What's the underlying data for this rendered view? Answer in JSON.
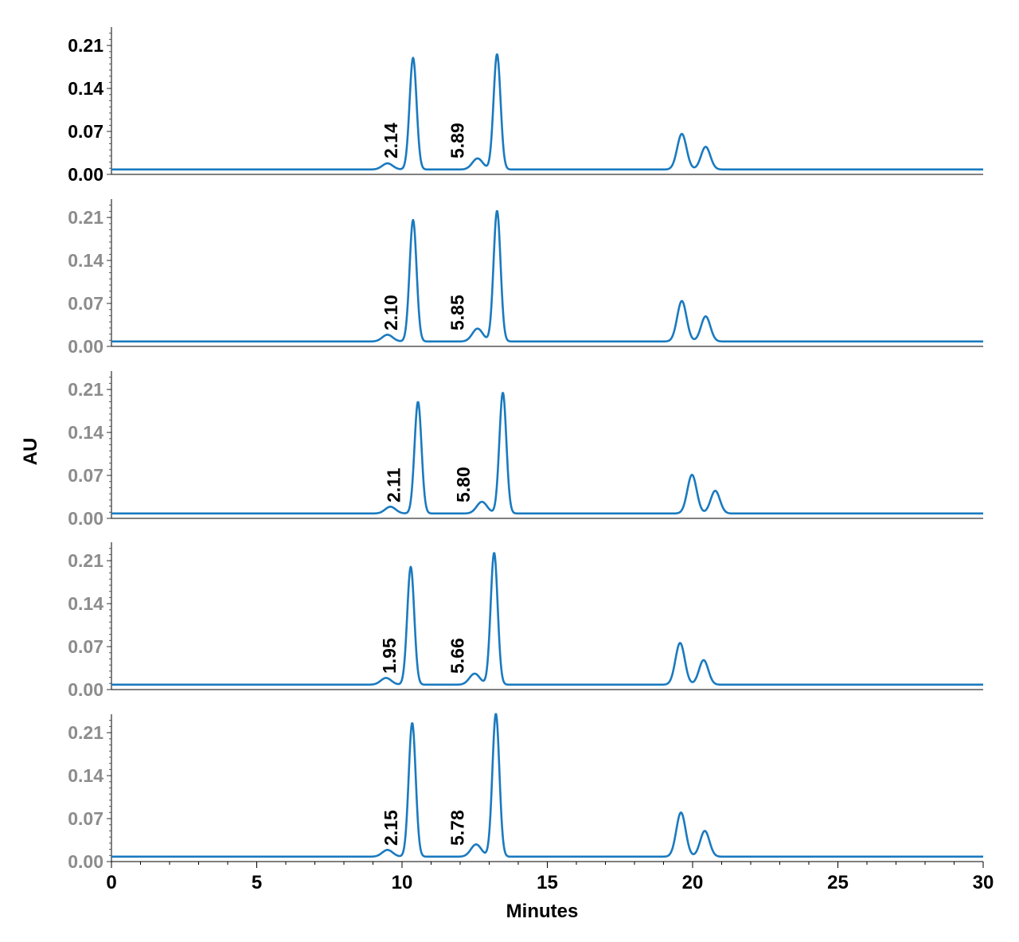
{
  "chart_data": {
    "type": "line",
    "title": "",
    "xlabel": "Minutes",
    "ylabel": "AU",
    "xlim": [
      0,
      30
    ],
    "ylim": [
      0,
      0.24
    ],
    "x_ticks": [
      "0",
      "5",
      "10",
      "15",
      "20",
      "25",
      "30"
    ],
    "y_ticks": [
      "0.00",
      "0.07",
      "0.14",
      "0.21"
    ],
    "line_color": "#1a7abf",
    "axis_color": "#000000",
    "first_panel_tick_color": "#000000",
    "other_panel_tick_color": "#8c8c8c",
    "grid": false,
    "panels": [
      {
        "baseline": 0.008,
        "annotations": [
          {
            "x": 9.5,
            "label": "2.14"
          },
          {
            "x": 11.8,
            "label": "5.89"
          }
        ],
        "peaks": [
          {
            "x": 9.5,
            "height": 0.01
          },
          {
            "x": 10.38,
            "height": 0.182
          },
          {
            "x": 12.6,
            "height": 0.018
          },
          {
            "x": 13.27,
            "height": 0.188
          },
          {
            "x": 19.63,
            "height": 0.058
          },
          {
            "x": 20.45,
            "height": 0.037
          }
        ]
      },
      {
        "baseline": 0.008,
        "annotations": [
          {
            "x": 9.5,
            "label": "2.10"
          },
          {
            "x": 11.8,
            "label": "5.85"
          }
        ],
        "peaks": [
          {
            "x": 9.5,
            "height": 0.011
          },
          {
            "x": 10.38,
            "height": 0.198
          },
          {
            "x": 12.6,
            "height": 0.021
          },
          {
            "x": 13.27,
            "height": 0.213
          },
          {
            "x": 19.63,
            "height": 0.066
          },
          {
            "x": 20.45,
            "height": 0.041
          }
        ]
      },
      {
        "baseline": 0.008,
        "annotations": [
          {
            "x": 9.6,
            "label": "2.11"
          },
          {
            "x": 12.0,
            "label": "5.80"
          }
        ],
        "peaks": [
          {
            "x": 9.6,
            "height": 0.011
          },
          {
            "x": 10.55,
            "height": 0.182
          },
          {
            "x": 12.75,
            "height": 0.019
          },
          {
            "x": 13.47,
            "height": 0.197
          },
          {
            "x": 19.98,
            "height": 0.063
          },
          {
            "x": 20.78,
            "height": 0.037
          }
        ]
      },
      {
        "baseline": 0.008,
        "annotations": [
          {
            "x": 9.45,
            "label": "1.95"
          },
          {
            "x": 11.8,
            "label": "5.66"
          }
        ],
        "peaks": [
          {
            "x": 9.45,
            "height": 0.011
          },
          {
            "x": 10.3,
            "height": 0.192
          },
          {
            "x": 12.5,
            "height": 0.018
          },
          {
            "x": 13.17,
            "height": 0.215
          },
          {
            "x": 19.57,
            "height": 0.068
          },
          {
            "x": 20.38,
            "height": 0.04
          }
        ]
      },
      {
        "baseline": 0.008,
        "annotations": [
          {
            "x": 9.5,
            "label": "2.15"
          },
          {
            "x": 11.8,
            "label": "5.78"
          }
        ],
        "peaks": [
          {
            "x": 9.5,
            "height": 0.011
          },
          {
            "x": 10.35,
            "height": 0.218
          },
          {
            "x": 12.55,
            "height": 0.02
          },
          {
            "x": 13.23,
            "height": 0.233
          },
          {
            "x": 19.6,
            "height": 0.072
          },
          {
            "x": 20.42,
            "height": 0.042
          }
        ]
      }
    ]
  }
}
